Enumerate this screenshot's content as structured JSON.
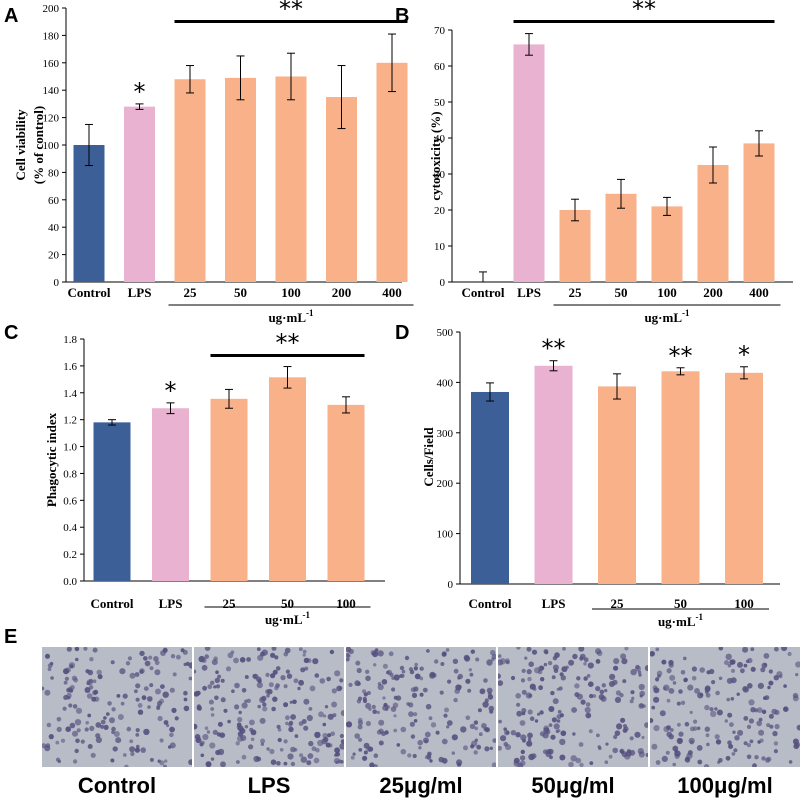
{
  "colors": {
    "control": "#3d5f97",
    "lps": "#e8b2d0",
    "treatment": "#f8b189",
    "micro_bg": "#b8bcc6",
    "cell": "#55507e"
  },
  "unit_label": "ug·mL",
  "unit_exp": "-1",
  "chart_data": [
    {
      "panel": "A",
      "type": "bar",
      "ylabel_lines": [
        "Cell viability",
        "(% of control)"
      ],
      "ylim": [
        0,
        200
      ],
      "yticks": [
        "0",
        "20",
        "40",
        "60",
        "80",
        "100",
        "120",
        "140",
        "160",
        "180",
        "200"
      ],
      "categories": [
        "Control",
        "LPS",
        "25",
        "50",
        "100",
        "200",
        "400"
      ],
      "values": [
        100,
        128,
        148,
        149,
        150,
        135,
        160
      ],
      "errors": [
        15,
        2,
        10,
        16,
        17,
        23,
        21
      ],
      "bar_colors": [
        "control",
        "lps",
        "treatment",
        "treatment",
        "treatment",
        "treatment",
        "treatment"
      ],
      "annotations": [
        "",
        "*",
        "",
        "",
        "",
        "",
        ""
      ],
      "bracket_label": "**",
      "bracket_from": 2,
      "bracket_to": 6,
      "unit_from": 2,
      "unit_to": 6
    },
    {
      "panel": "B",
      "type": "bar",
      "ylabel_lines": [
        "cytotoxicity (%)"
      ],
      "ylim": [
        0,
        70
      ],
      "yticks": [
        "0",
        "10",
        "20",
        "30",
        "40",
        "50",
        "60",
        "70"
      ],
      "categories": [
        "Control",
        "LPS",
        "25",
        "50",
        "100",
        "200",
        "400"
      ],
      "values": [
        0,
        66,
        20,
        24.5,
        21,
        32.5,
        38.5
      ],
      "errors": [
        2.8,
        3,
        3,
        4,
        2.5,
        5,
        3.5
      ],
      "bar_colors": [
        "control",
        "lps",
        "treatment",
        "treatment",
        "treatment",
        "treatment",
        "treatment"
      ],
      "annotations": [
        "",
        "",
        "",
        "",
        "",
        "",
        ""
      ],
      "bracket_label": "**",
      "bracket_from": 1,
      "bracket_to": 6,
      "unit_from": 2,
      "unit_to": 6
    },
    {
      "panel": "C",
      "type": "bar",
      "ylabel_lines": [
        "Phagocytic index"
      ],
      "ylim": [
        0,
        1.8
      ],
      "yticks": [
        "0.0",
        "0.2",
        "0.4",
        "0.6",
        "0.8",
        "1.0",
        "1.2",
        "1.4",
        "1.6",
        "1.8"
      ],
      "categories": [
        "Control",
        "LPS",
        "25",
        "50",
        "100"
      ],
      "values": [
        1.18,
        1.285,
        1.355,
        1.515,
        1.31
      ],
      "errors": [
        0.02,
        0.04,
        0.07,
        0.08,
        0.06
      ],
      "bar_colors": [
        "control",
        "lps",
        "treatment",
        "treatment",
        "treatment"
      ],
      "annotations": [
        "",
        "*",
        "",
        "",
        ""
      ],
      "bracket_label": "**",
      "bracket_from": 2,
      "bracket_to": 4,
      "unit_from": 2,
      "unit_to": 4
    },
    {
      "panel": "D",
      "type": "bar",
      "ylabel_lines": [
        "Cells/Field"
      ],
      "ylim": [
        0,
        500
      ],
      "yticks": [
        "0",
        "100",
        "200",
        "300",
        "400",
        "500"
      ],
      "categories": [
        "Control",
        "LPS",
        "25",
        "50",
        "100"
      ],
      "values": [
        381,
        433,
        392,
        422,
        419
      ],
      "errors": [
        18,
        10,
        25,
        7,
        12
      ],
      "bar_colors": [
        "control",
        "lps",
        "treatment",
        "treatment",
        "treatment"
      ],
      "annotations": [
        "",
        "**",
        "",
        "**",
        "*"
      ],
      "bracket_label": "",
      "bracket_from": -1,
      "bracket_to": -1,
      "unit_from": 2,
      "unit_to": 4
    }
  ],
  "panel_e": {
    "letter": "E",
    "images": [
      {
        "label": "Control",
        "density": 170
      },
      {
        "label": "LPS",
        "density": 210
      },
      {
        "label": "25μg/ml",
        "density": 190
      },
      {
        "label": "50μg/ml",
        "density": 200
      },
      {
        "label": "100μg/ml",
        "density": 185
      }
    ]
  }
}
